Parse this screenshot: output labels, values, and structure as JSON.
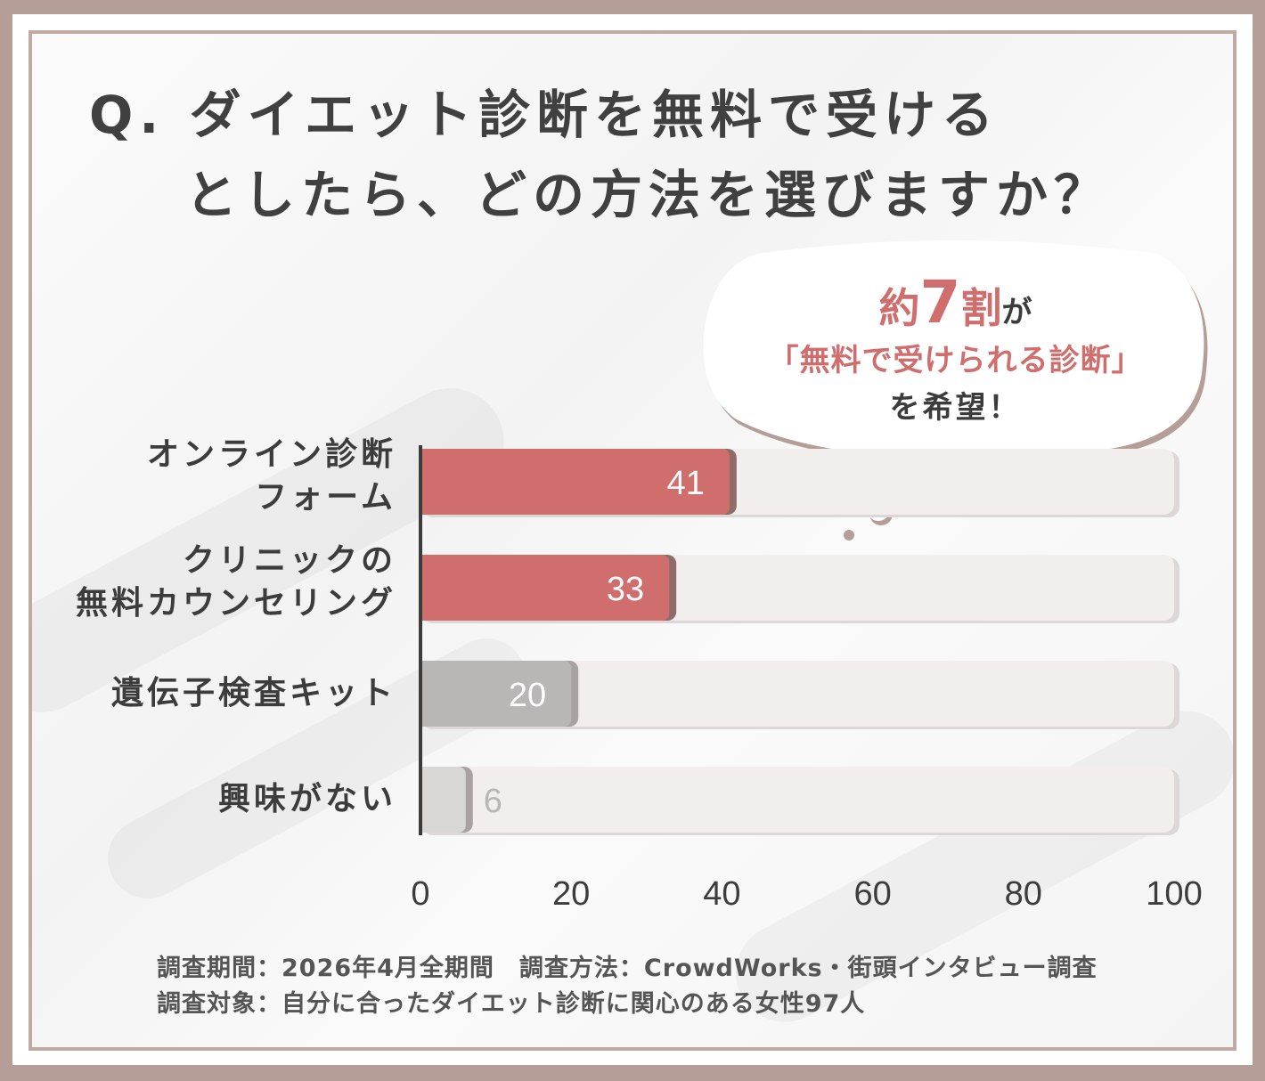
{
  "title": {
    "line1": "Q. ダイエット診断を無料で受ける",
    "line2": "としたら、どの方法を選びますか？"
  },
  "callout": {
    "line1_prefix": "約",
    "line1_number": "7",
    "line1_unit": "割",
    "line1_suffix": "が",
    "line2": "「無料で受けられる診断」",
    "line3": "を希望！"
  },
  "footnote": {
    "line1": "調査期間：2026年4月全期間　調査方法：CrowdWorks・街頭インタビュー調査",
    "line2": "調査対象：自分に合ったダイエット診断に関心のある女性97人"
  },
  "colors": {
    "accent": "#d06e6d",
    "gray_bar": "#b9b6b6",
    "light_bar": "#d9d6d6",
    "track": "#f1eeed",
    "border": "#b49e97"
  },
  "chart_data": {
    "type": "bar",
    "orientation": "horizontal",
    "categories": [
      [
        "オンライン診断",
        "フォーム"
      ],
      [
        "クリニックの",
        "無料カウンセリング"
      ],
      [
        "遺伝子検査キット"
      ],
      [
        "興味がない"
      ]
    ],
    "values": [
      41,
      33,
      20,
      6
    ],
    "data_labels": [
      "41",
      "33",
      "20",
      "6"
    ],
    "xlim": [
      0,
      100
    ],
    "xticks": [
      "0",
      "20",
      "40",
      "60",
      "80",
      "100"
    ],
    "highlight": [
      true,
      true,
      false,
      false
    ],
    "grid": false,
    "legend": "none"
  }
}
